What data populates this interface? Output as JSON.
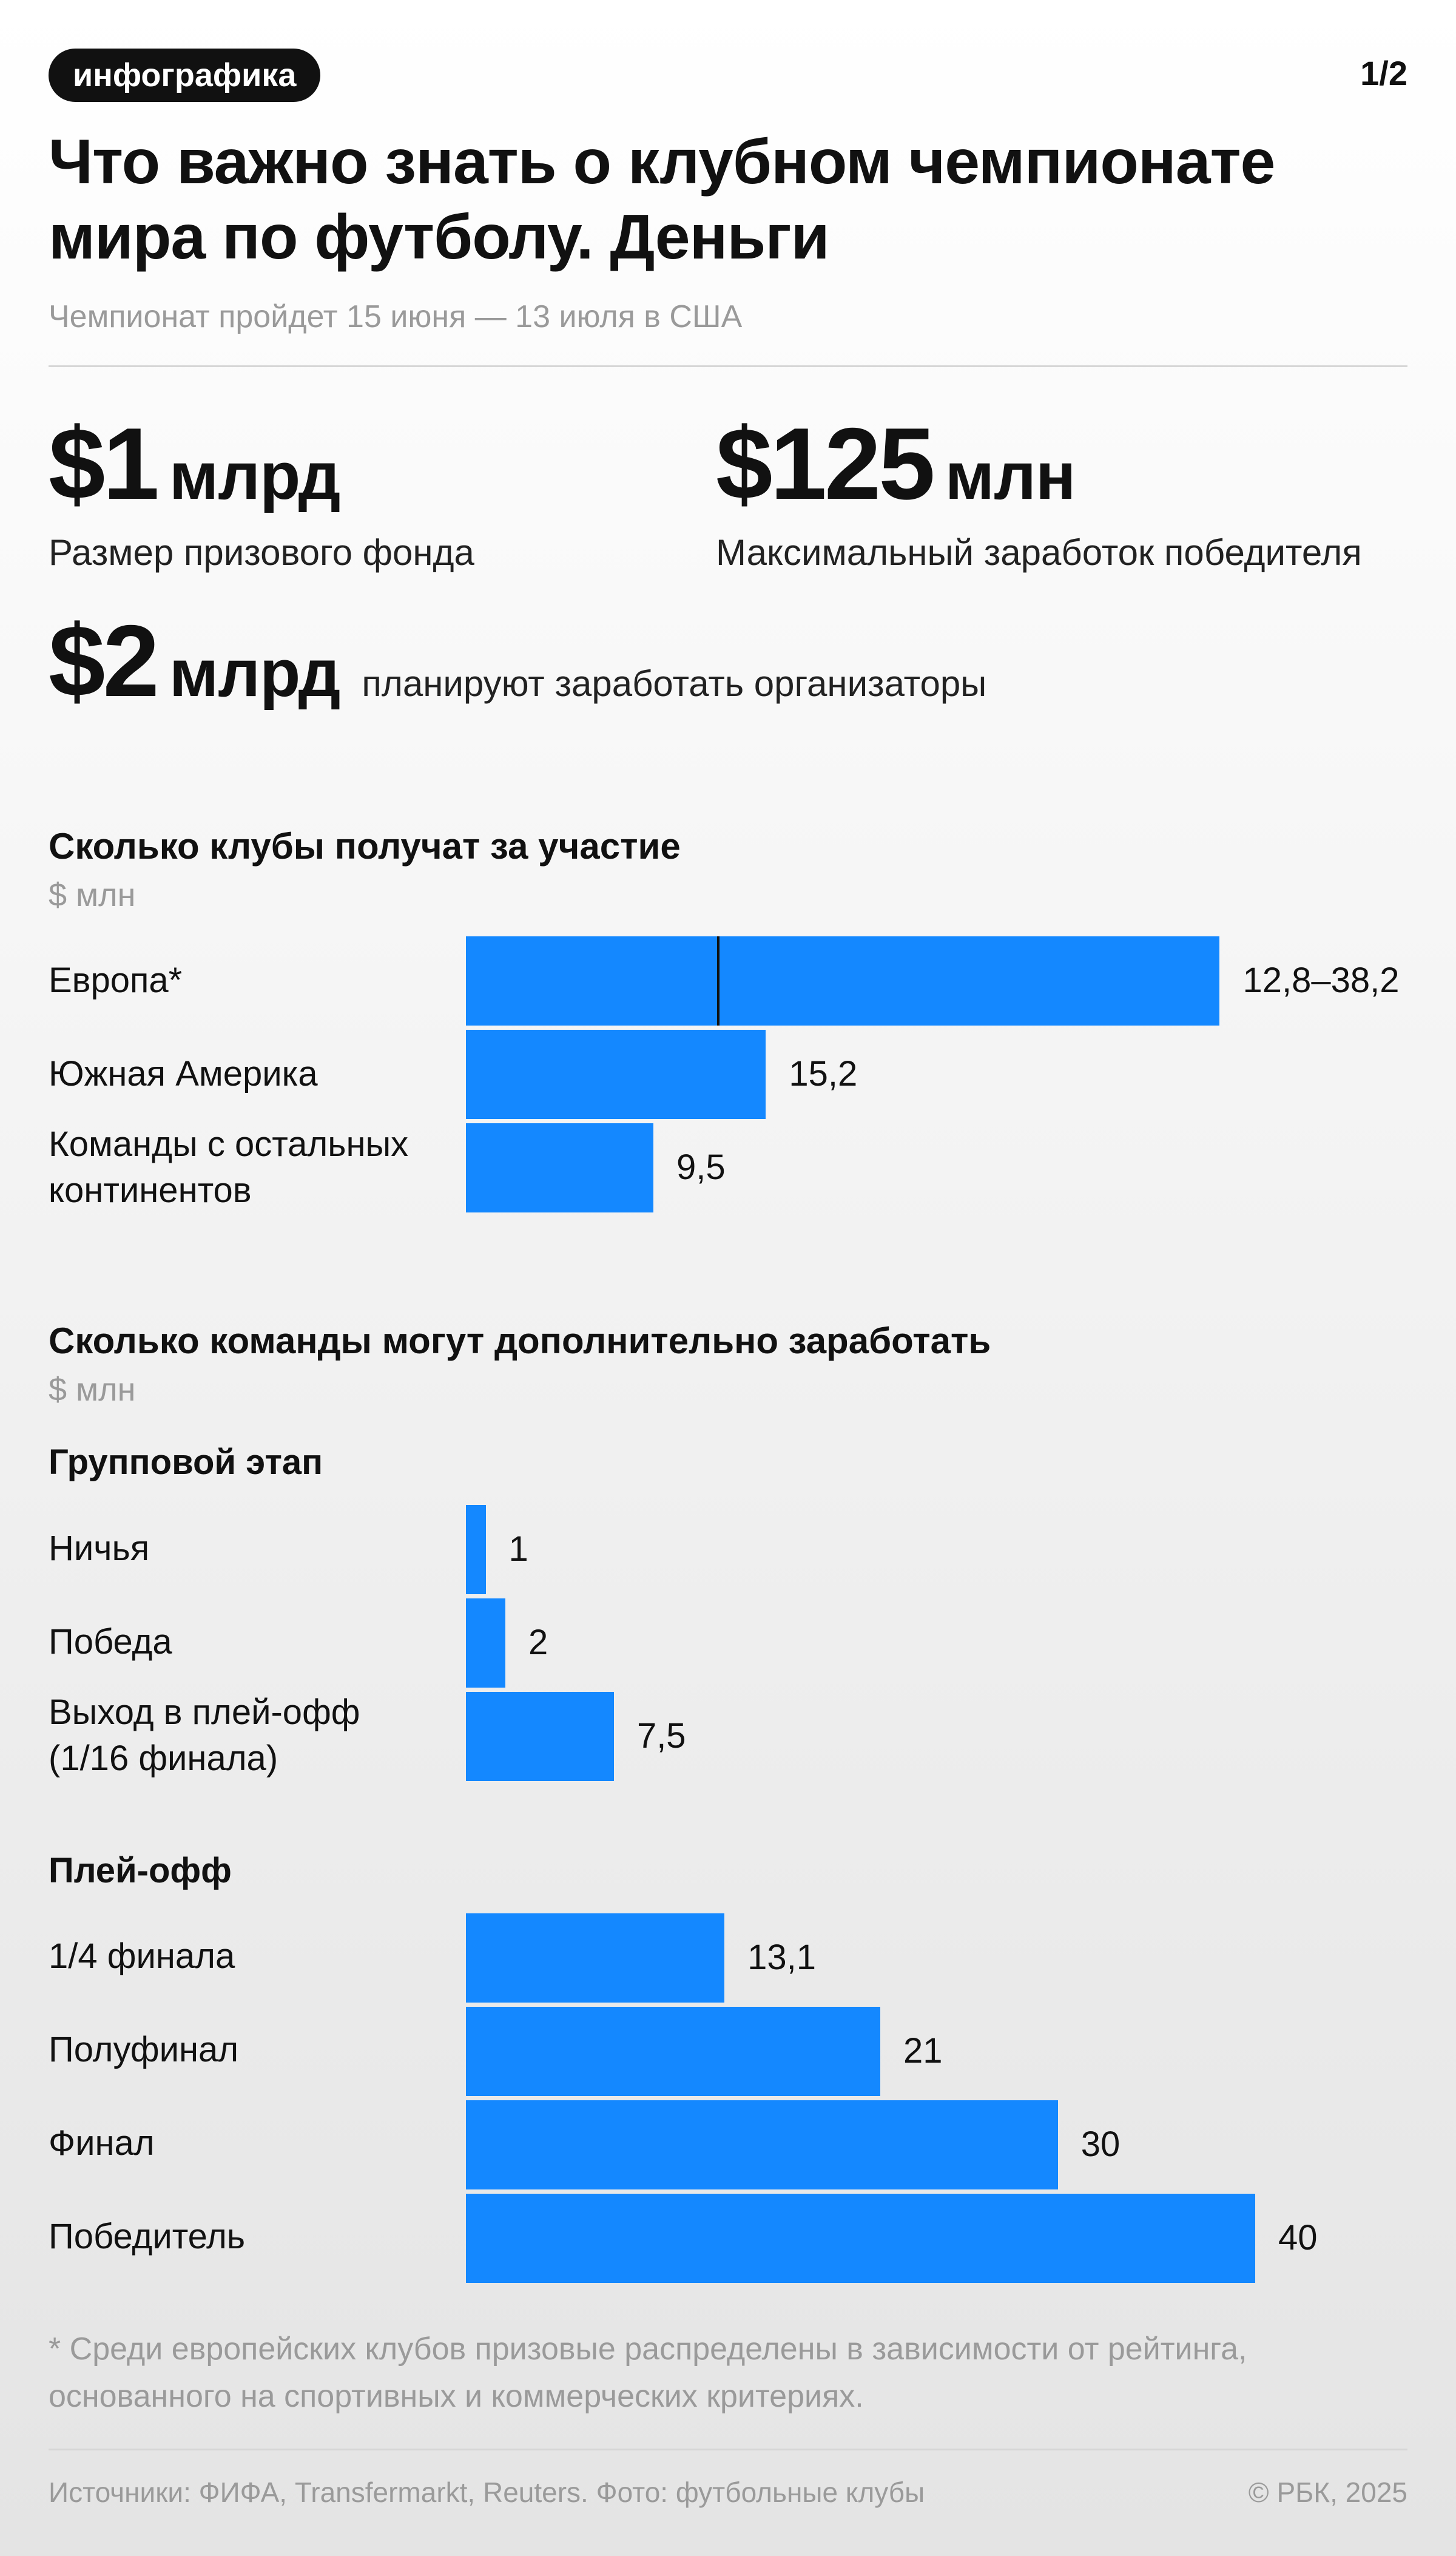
{
  "header": {
    "tag": "инфографика",
    "pager": "1/2",
    "title": "Что важно знать о клубном чемпионате мира по футболу. Деньги",
    "subtitle": "Чемпионат пройдет 15 июня — 13 июля в США"
  },
  "stats": {
    "prize": {
      "value": "$1",
      "unit": "млрд",
      "caption": "Размер призового фонда"
    },
    "winner": {
      "value": "$125",
      "unit": "млн",
      "caption": "Максимальный заработок победителя"
    },
    "organizers": {
      "value": "$2",
      "unit": "млрд",
      "caption": "планируют заработать организаторы"
    }
  },
  "colors": {
    "bar": "#1488ff",
    "muted": "#9a9a9a"
  },
  "chart_data": [
    {
      "type": "bar",
      "orientation": "horizontal",
      "title": "Сколько клубы получат за участие",
      "unit": "$ млн",
      "xlim": [
        0,
        40
      ],
      "rows": [
        {
          "label": "Европа*",
          "value": 38.2,
          "range_min": 12.8,
          "value_label": "12,8–38,2"
        },
        {
          "label": "Южная Америка",
          "value": 15.2,
          "value_label": "15,2"
        },
        {
          "label": "Команды с остальных континентов",
          "value": 9.5,
          "value_label": "9,5"
        }
      ]
    },
    {
      "type": "bar",
      "orientation": "horizontal",
      "title": "Сколько команды могут дополнительно заработать",
      "unit": "$ млн",
      "xlim": [
        0,
        40
      ],
      "groups": [
        {
          "name": "Групповой этап",
          "rows": [
            {
              "label": "Ничья",
              "value": 1,
              "value_label": "1"
            },
            {
              "label": "Победа",
              "value": 2,
              "value_label": "2"
            },
            {
              "label": "Выход в плей-офф (1/16 финала)",
              "value": 7.5,
              "value_label": "7,5"
            }
          ]
        },
        {
          "name": "Плей-офф",
          "rows": [
            {
              "label": "1/4 финала",
              "value": 13.1,
              "value_label": "13,1"
            },
            {
              "label": "Полуфинал",
              "value": 21,
              "value_label": "21"
            },
            {
              "label": "Финал",
              "value": 30,
              "value_label": "30"
            },
            {
              "label": "Победитель",
              "value": 40,
              "value_label": "40"
            }
          ]
        }
      ]
    }
  ],
  "footer": {
    "footnote": "* Среди европейских клубов призовые распределены в зависимости от рейтинга, основанного на спортивных и коммерческих критериях.",
    "sources": "Источники: ФИФА, Transfermarkt, Reuters. Фото: футбольные клубы",
    "copyright": "© РБК, 2025"
  }
}
